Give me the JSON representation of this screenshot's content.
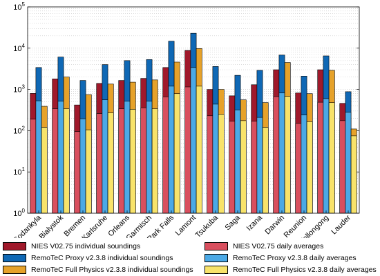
{
  "chart_data": {
    "type": "bar",
    "y_scale": "log",
    "ylim": [
      1,
      100000
    ],
    "y_ticks": [
      {
        "value": 1,
        "base": "10",
        "exp": "0"
      },
      {
        "value": 10,
        "base": "10",
        "exp": "1"
      },
      {
        "value": 100,
        "base": "10",
        "exp": "2"
      },
      {
        "value": 1000,
        "base": "10",
        "exp": "3"
      },
      {
        "value": 10000,
        "base": "10",
        "exp": "4"
      },
      {
        "value": 100000,
        "base": "10",
        "exp": "5"
      }
    ],
    "grid": true,
    "legend_position": "bottom",
    "categories": [
      "Sodankyla",
      "Bialystok",
      "Bremen",
      "Karlsruhe",
      "Orleans",
      "Garmisch",
      "Park Falls",
      "Lamont",
      "Tsukuba",
      "Saga",
      "Izana",
      "Darwin",
      "Reunion",
      "Wollongong",
      "Lauder"
    ],
    "series": [
      {
        "name": "NIES V02.75 individual soundings",
        "color": "#a0192b",
        "values": [
          800,
          1800,
          420,
          1400,
          1650,
          1850,
          3400,
          8800,
          1000,
          700,
          1300,
          3000,
          820,
          3000,
          460
        ]
      },
      {
        "name": "NIES V02.75 daily averages",
        "color": "#d94f5e",
        "values": [
          190,
          340,
          95,
          260,
          340,
          360,
          660,
          1150,
          230,
          170,
          170,
          670,
          150,
          490,
          175
        ]
      },
      {
        "name": "RemoTeC Proxy v2.3.8 individual soundings",
        "color": "#0f68b5",
        "values": [
          3400,
          6100,
          1650,
          4000,
          5000,
          5300,
          14800,
          23000,
          3600,
          2200,
          2900,
          6800,
          2100,
          6500,
          880
        ]
      },
      {
        "name": "RemoTeC Proxy v2.3.8 daily averages",
        "color": "#4ba9e6",
        "values": [
          530,
          520,
          195,
          560,
          520,
          520,
          1200,
          3400,
          440,
          320,
          210,
          820,
          240,
          600,
          280
        ]
      },
      {
        "name": "RemoTeC Full Physics v2.3.8 individual soundings",
        "color": "#e6a22a",
        "values": [
          390,
          2000,
          750,
          1350,
          1500,
          1700,
          4600,
          9800,
          1000,
          560,
          480,
          4500,
          790,
          2900,
          110
        ]
      },
      {
        "name": "RemoTeC Full Physics v2.3.8 daily averages",
        "color": "#f8e36a",
        "values": [
          120,
          340,
          105,
          270,
          330,
          340,
          790,
          1200,
          250,
          175,
          120,
          680,
          165,
          480,
          75
        ]
      }
    ]
  }
}
